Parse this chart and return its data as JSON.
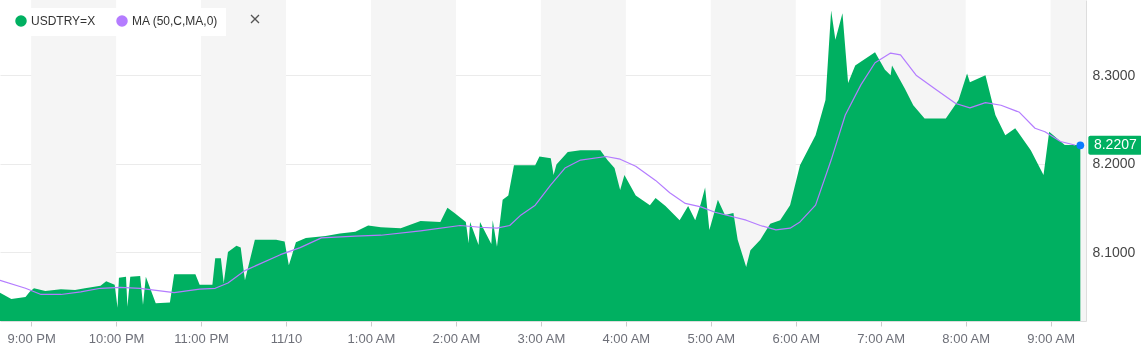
{
  "chart_data": {
    "type": "area",
    "xlim": [
      "--11-09T20:38",
      "--11-10T09:25"
    ],
    "ylim": [
      8.022,
      8.385
    ],
    "xticks": [
      {
        "value": "--11-09T21:00",
        "label": "9:00 PM"
      },
      {
        "value": "--11-09T22:00",
        "label": "10:00 PM"
      },
      {
        "value": "--11-09T23:00",
        "label": "11:00 PM"
      },
      {
        "value": "--11-10T00:00",
        "label": "11/10"
      },
      {
        "value": "--11-10T01:00",
        "label": "1:00 AM"
      },
      {
        "value": "--11-10T02:00",
        "label": "2:00 AM"
      },
      {
        "value": "--11-10T03:00",
        "label": "3:00 AM"
      },
      {
        "value": "--11-10T04:00",
        "label": "4:00 AM"
      },
      {
        "value": "--11-10T05:00",
        "label": "5:00 AM"
      },
      {
        "value": "--11-10T06:00",
        "label": "6:00 AM"
      },
      {
        "value": "--11-10T07:00",
        "label": "7:00 AM"
      },
      {
        "value": "--11-10T08:00",
        "label": "8:00 AM"
      },
      {
        "value": "--11-10T09:00",
        "label": "9:00 AM"
      }
    ],
    "yticks": [
      {
        "value": 8.1,
        "label": "8.1000"
      },
      {
        "value": 8.2,
        "label": "8.2000"
      },
      {
        "value": 8.3,
        "label": "8.3000"
      }
    ],
    "grid": "y",
    "legend": "top left",
    "bands": [
      {
        "axis": "x",
        "from": "--11-09T21:00",
        "to": "--11-09T22:00",
        "color": "#f5f5f5"
      },
      {
        "axis": "x",
        "from": "--11-09T23:00",
        "to": "--11-10T00:00",
        "color": "#f5f5f5"
      },
      {
        "axis": "x",
        "from": "--11-10T01:00",
        "to": "--11-10T02:00",
        "color": "#f5f5f5"
      },
      {
        "axis": "x",
        "from": "--11-10T03:00",
        "to": "--11-10T04:00",
        "color": "#f5f5f5"
      },
      {
        "axis": "x",
        "from": "--11-10T05:00",
        "to": "--11-10T06:00",
        "color": "#f5f5f5"
      },
      {
        "axis": "x",
        "from": "--11-10T07:00",
        "to": "--11-10T08:00",
        "color": "#f5f5f5"
      },
      {
        "axis": "x",
        "from": "--11-10T09:00",
        "to": "--11-10T09:25",
        "color": "#f5f5f5"
      }
    ],
    "annotations": [
      {
        "text": "8.2207",
        "x": "--11-10T09:21",
        "y": 8.2207
      }
    ],
    "series": [
      {
        "name": "USDTRY=X",
        "color": "#00b061",
        "x": [
          "--11-09T20:38",
          "--11-09T20:46",
          "--11-09T20:56",
          "--11-09T20:59",
          "--11-09T21:02",
          "--11-09T21:10",
          "--11-09T21:21",
          "--11-09T21:31",
          "--11-09T21:38",
          "--11-09T21:49",
          "--11-09T21:53",
          "--11-09T21:59",
          "--11-09T22:01",
          "--11-09T22:02",
          "--11-09T22:07",
          "--11-09T22:08",
          "--11-09T22:10",
          "--11-09T22:17",
          "--11-09T22:19",
          "--11-09T22:21",
          "--11-09T22:28",
          "--11-09T22:38",
          "--11-09T22:41",
          "--11-09T22:56",
          "--11-09T22:59",
          "--11-09T23:08",
          "--11-09T23:10",
          "--11-09T23:14",
          "--11-09T23:16",
          "--11-09T23:19",
          "--11-09T23:25",
          "--11-09T23:28",
          "--11-09T23:31",
          "--11-09T23:38",
          "--11-09T23:53",
          "--11-09T23:59",
          "--11-10T00:02",
          "--11-10T00:07",
          "--11-10T00:14",
          "--11-10T00:28",
          "--11-10T00:38",
          "--11-10T00:49",
          "--11-10T00:58",
          "--11-10T01:07",
          "--11-10T01:21",
          "--11-10T01:35",
          "--11-10T01:49",
          "--11-10T01:54",
          "--11-10T01:59",
          "--11-10T02:07",
          "--11-10T02:09",
          "--11-10T02:10",
          "--11-10T02:16",
          "--11-10T02:17",
          "--11-10T02:25",
          "--11-10T02:26",
          "--11-10T02:29",
          "--11-10T02:33",
          "--11-10T02:37",
          "--11-10T02:41",
          "--11-10T02:56",
          "--11-10T02:59",
          "--11-10T03:07",
          "--11-10T03:09",
          "--11-10T03:11",
          "--11-10T03:19",
          "--11-10T03:28",
          "--11-10T03:42",
          "--11-10T03:47",
          "--11-10T03:52",
          "--11-10T03:56",
          "--11-10T03:59",
          "--11-10T04:07",
          "--11-10T04:17",
          "--11-10T04:21",
          "--11-10T04:28",
          "--11-10T04:38",
          "--11-10T04:44",
          "--11-10T04:49",
          "--11-10T04:53",
          "--11-10T04:56",
          "--11-10T04:59",
          "--11-10T05:05",
          "--11-10T05:10",
          "--11-10T05:16",
          "--11-10T05:19",
          "--11-10T05:25",
          "--11-10T05:28",
          "--11-10T05:35",
          "--11-10T05:42",
          "--11-10T05:49",
          "--11-10T05:56",
          "--11-10T06:03",
          "--11-10T06:14",
          "--11-10T06:21",
          "--11-10T06:25",
          "--11-10T06:28",
          "--11-10T06:33",
          "--11-10T06:37",
          "--11-10T06:42",
          "--11-10T06:56",
          "--11-10T07:03",
          "--11-10T07:07",
          "--11-10T07:08",
          "--11-10T07:17",
          "--11-10T07:23",
          "--11-10T07:31",
          "--11-10T07:46",
          "--11-10T07:55",
          "--11-10T08:01",
          "--11-10T08:03",
          "--11-10T08:14",
          "--11-10T08:21",
          "--11-10T08:28",
          "--11-10T08:35",
          "--11-10T08:46",
          "--11-10T08:55",
          "--11-10T08:59",
          "--11-10T09:10",
          "--11-10T09:21"
        ],
        "values": [
          8.054,
          8.047,
          8.049,
          8.055,
          8.059,
          8.056,
          8.058,
          8.057,
          8.059,
          8.062,
          8.067,
          8.063,
          8.037,
          8.071,
          8.072,
          8.038,
          8.072,
          8.073,
          8.04,
          8.072,
          8.042,
          8.043,
          8.075,
          8.075,
          8.063,
          8.063,
          8.093,
          8.093,
          8.065,
          8.1,
          8.107,
          8.105,
          8.068,
          8.114,
          8.114,
          8.112,
          8.085,
          8.111,
          8.116,
          8.118,
          8.121,
          8.123,
          8.13,
          8.128,
          8.127,
          8.135,
          8.134,
          8.15,
          8.144,
          8.134,
          8.11,
          8.134,
          8.108,
          8.134,
          8.109,
          8.136,
          8.106,
          8.159,
          8.164,
          8.198,
          8.198,
          8.208,
          8.206,
          8.187,
          8.199,
          8.213,
          8.215,
          8.215,
          8.204,
          8.195,
          8.17,
          8.187,
          8.164,
          8.153,
          8.161,
          8.152,
          8.136,
          8.152,
          8.136,
          8.155,
          8.173,
          8.125,
          8.159,
          8.142,
          8.144,
          8.114,
          8.083,
          8.102,
          8.114,
          8.132,
          8.136,
          8.153,
          8.198,
          8.232,
          8.272,
          8.373,
          8.34,
          8.37,
          8.291,
          8.311,
          8.326,
          8.306,
          8.3,
          8.311,
          8.285,
          8.266,
          8.251,
          8.251,
          8.272,
          8.302,
          8.292,
          8.3,
          8.255,
          8.232,
          8.24,
          8.215,
          8.187,
          8.236,
          8.221,
          8.221
        ]
      },
      {
        "name": "MA (50,C,MA,0)",
        "type": "line",
        "color": "#b47cff",
        "x": [
          "--11-09T20:38",
          "--11-09T20:56",
          "--11-09T21:07",
          "--11-09T21:21",
          "--11-09T21:35",
          "--11-09T21:49",
          "--11-09T22:03",
          "--11-09T22:17",
          "--11-09T22:41",
          "--11-09T22:59",
          "--11-09T23:10",
          "--11-09T23:19",
          "--11-09T23:31",
          "--11-09T23:56",
          "--11-10T00:10",
          "--11-10T00:25",
          "--11-10T00:49",
          "--11-10T01:07",
          "--11-10T01:35",
          "--11-10T02:03",
          "--11-10T02:17",
          "--11-10T02:29",
          "--11-10T02:38",
          "--11-10T02:46",
          "--11-10T02:56",
          "--11-10T03:07",
          "--11-10T03:17",
          "--11-10T03:28",
          "--11-10T03:46",
          "--11-10T03:56",
          "--11-10T04:07",
          "--11-10T04:21",
          "--11-10T04:31",
          "--11-10T04:42",
          "--11-10T04:53",
          "--11-10T05:03",
          "--11-10T05:25",
          "--11-10T05:35",
          "--11-10T05:46",
          "--11-10T05:56",
          "--11-10T06:03",
          "--11-10T06:14",
          "--11-10T06:25",
          "--11-10T06:35",
          "--11-10T06:46",
          "--11-10T06:56",
          "--11-10T07:07",
          "--11-10T07:14",
          "--11-10T07:25",
          "--11-10T07:38",
          "--11-10T07:53",
          "--11-10T08:03",
          "--11-10T08:14",
          "--11-10T08:25",
          "--11-10T08:38",
          "--11-10T08:49",
          "--11-10T08:56",
          "--11-10T09:07",
          "--11-10T09:17"
        ],
        "values": [
          8.068,
          8.059,
          8.052,
          8.052,
          8.055,
          8.059,
          8.06,
          8.059,
          8.054,
          8.058,
          8.059,
          8.065,
          8.079,
          8.097,
          8.105,
          8.116,
          8.118,
          8.119,
          8.124,
          8.13,
          8.128,
          8.127,
          8.13,
          8.142,
          8.153,
          8.176,
          8.195,
          8.204,
          8.208,
          8.205,
          8.197,
          8.181,
          8.167,
          8.155,
          8.151,
          8.145,
          8.136,
          8.13,
          8.125,
          8.127,
          8.134,
          8.153,
          8.204,
          8.255,
          8.289,
          8.314,
          8.325,
          8.323,
          8.3,
          8.285,
          8.268,
          8.263,
          8.269,
          8.266,
          8.258,
          8.24,
          8.236,
          8.225,
          8.221
        ]
      }
    ]
  }
}
